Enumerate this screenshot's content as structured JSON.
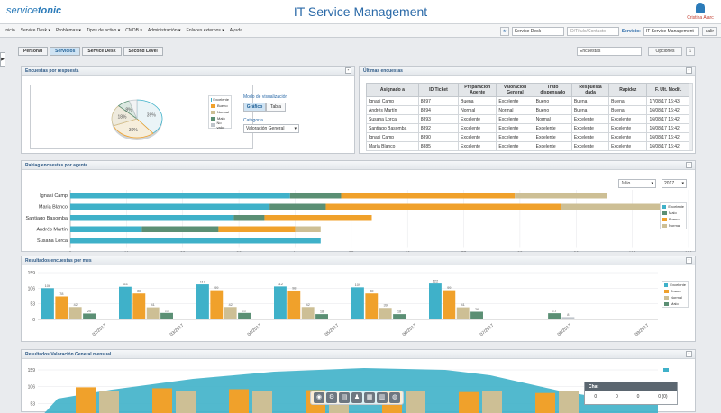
{
  "header": {
    "logo_text": "service",
    "logo_bold": "tonic",
    "title": "IT Service Management",
    "user_name": "Cristina Alarc"
  },
  "menu": {
    "items": [
      "Inicio",
      "Service Desk ▾",
      "Problemas ▾",
      "Tipos de activo ▾",
      "CMDB ▾",
      "Administración ▾",
      "Enlaces externos ▾",
      "Ayuda"
    ],
    "search_value": "Service Desk",
    "id_placeholder": "ID/Título/Contacto",
    "service_label": "Servicio:",
    "service_value": "IT Service Management",
    "exit_label": "salir"
  },
  "tabs": [
    "Personal",
    "Servicios",
    "Service Desk",
    "Second Level"
  ],
  "options": {
    "select_value": "Encuestas",
    "button_label": "Opciones"
  },
  "panels": {
    "pie_title": "Encuestas por respuesta",
    "table_title": "Últimas encuestas",
    "ranking_title": "Rakiag encuestas por agente",
    "monthly_title": "Resultados encuestas por mes",
    "valoracion_title": "Resultados Valoración General mensual"
  },
  "pie": {
    "mode_label": "Modo de visualización",
    "mode_buttons": [
      "Gráfico",
      "Tabla"
    ],
    "category_label": "Categoría",
    "category_value": "Valoración General",
    "legend": [
      "Excelente",
      "Bueno",
      "Normal",
      "Malo",
      "No valor"
    ]
  },
  "table": {
    "headers": [
      "Asignado a",
      "ID Ticket",
      "Preparación Agente",
      "Valoración General",
      "Trato dispensado",
      "Respuesta dada",
      "Rapidez",
      "F. Ult. Modif."
    ],
    "rows": [
      [
        "Ignasi Camp",
        "8897",
        "Buena",
        "Excelente",
        "Bueno",
        "Buena",
        "Buena",
        "17/08/17 16:43"
      ],
      [
        "Andrés Martín",
        "8894",
        "Normal",
        "Normal",
        "Bueno",
        "Buena",
        "Buena",
        "16/08/17 16:42"
      ],
      [
        "Susana Lorca",
        "8893",
        "Excelente",
        "Excelente",
        "Normal",
        "Excelente",
        "Excelente",
        "16/08/17 16:42"
      ],
      [
        "Santiago Basomba",
        "8892",
        "Excelente",
        "Excelente",
        "Excelente",
        "Excelente",
        "Excelente",
        "16/08/17 16:42"
      ],
      [
        "Ignasi Camp",
        "8890",
        "Excelente",
        "Excelente",
        "Excelente",
        "Excelente",
        "Excelente",
        "16/08/17 16:42"
      ],
      [
        "María Blanco",
        "8885",
        "Excelente",
        "Excelente",
        "Excelente",
        "Excelente",
        "Excelente",
        "16/08/17 16:42"
      ]
    ]
  },
  "ranking": {
    "month": "Julio",
    "year": "2017",
    "legend": [
      "Excelente",
      "Malo",
      "Bueno",
      "Normal"
    ]
  },
  "monthly": {
    "legend": [
      "Excelente",
      "Bueno",
      "Normal",
      "Malo"
    ]
  },
  "dock_icons": [
    "bulb-icon",
    "gear-icon",
    "chart-icon",
    "user-icon",
    "calendar-icon",
    "grid-icon",
    "globe-icon"
  ],
  "chat": {
    "title": "Chat",
    "stats": [
      "0",
      "0",
      "0",
      "0 (0)"
    ]
  },
  "colors": {
    "excelente": "#3fb1c9",
    "bueno": "#f0a12b",
    "normal": "#cdbf95",
    "malo": "#5b8f74"
  },
  "chart_data": [
    {
      "type": "pie",
      "categories": [
        "Excelente",
        "Bueno",
        "Normal",
        "Malo",
        "No valor"
      ],
      "values": [
        39,
        30,
        18,
        8,
        5
      ]
    },
    {
      "type": "bar",
      "orientation": "horizontal",
      "stacked": true,
      "categories": [
        "Ignasi Camp",
        "Maria Blanco",
        "Santiago Basomba",
        "Andrés Martín",
        "Susana Lorca"
      ],
      "series": [
        {
          "name": "Excelente",
          "values": [
            43,
            39,
            32,
            14,
            49
          ]
        },
        {
          "name": "Malo",
          "values": [
            10,
            11,
            6,
            15,
            0
          ]
        },
        {
          "name": "Bueno",
          "values": [
            34,
            46,
            21,
            15,
            0
          ]
        },
        {
          "name": "Normal",
          "values": [
            18,
            24,
            0,
            5,
            0
          ]
        }
      ],
      "xticks": [
        0,
        11,
        22,
        33,
        44,
        55,
        66,
        77,
        88,
        99,
        110,
        121
      ],
      "xlim": [
        0,
        121
      ]
    },
    {
      "type": "bar",
      "categories": [
        "02/2017",
        "03/2017",
        "04/2017",
        "05/2017",
        "06/2017",
        "07/2017",
        "08/2017",
        "09/2017"
      ],
      "series": [
        {
          "name": "Excelente",
          "values": [
            106,
            111,
            119,
            112,
            109,
            122,
            0,
            0
          ]
        },
        {
          "name": "Bueno",
          "values": [
            78,
            88,
            99,
            98,
            88,
            99,
            0,
            0
          ]
        },
        {
          "name": "Normal",
          "values": [
            42,
            41,
            42,
            42,
            39,
            41,
            0,
            0
          ]
        },
        {
          "name": "Malo",
          "values": [
            20,
            22,
            22,
            18,
            18,
            26,
            21,
            0
          ]
        },
        {
          "name": "No valor",
          "values": [
            0,
            0,
            0,
            0,
            0,
            0,
            8,
            0
          ]
        }
      ],
      "yticks": [
        0,
        53,
        106,
        159
      ],
      "ylim": [
        0,
        159
      ]
    },
    {
      "type": "bar",
      "yticks": [
        53,
        106,
        159
      ],
      "ylim": [
        0,
        159
      ]
    }
  ]
}
